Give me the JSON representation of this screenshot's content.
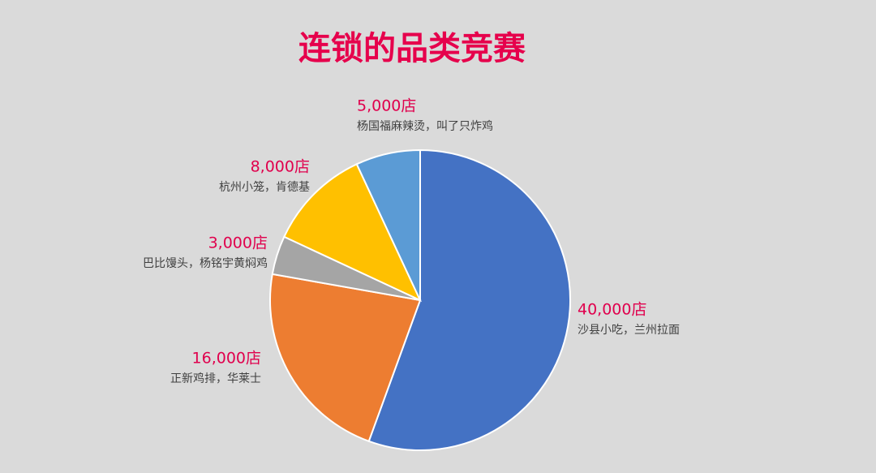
{
  "chart_data": {
    "type": "pie",
    "title": "连锁的品类竞赛",
    "categories": [
      "沙县小吃，兰州拉面",
      "正新鸡排，华莱士",
      "巴比馒头，杨铭宇黄焖鸡",
      "杭州小笼，肯德基",
      "杨国福麻辣烫，叫了只炸鸡"
    ],
    "values": [
      40000,
      16000,
      3000,
      8000,
      5000
    ],
    "value_labels": [
      "40,000店",
      "16,000店",
      "3,000店",
      "8,000店",
      "5,000店"
    ],
    "colors": [
      "#4472c4",
      "#ed7d31",
      "#a5a5a5",
      "#ffc000",
      "#5b9bd5"
    ]
  }
}
